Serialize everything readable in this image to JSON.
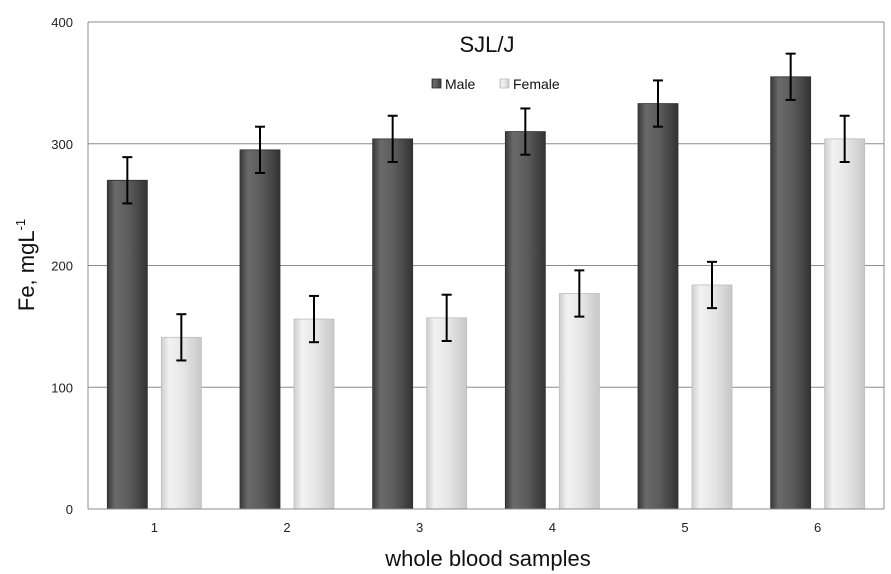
{
  "chart_data": {
    "type": "bar",
    "title": "SJL/J",
    "xlabel": "whole blood samples",
    "ylabel": "Fe, mgL",
    "ylabel_superscript": "-1",
    "categories": [
      "1",
      "2",
      "3",
      "4",
      "5",
      "6"
    ],
    "ylim": [
      0,
      400
    ],
    "yticks": [
      "0",
      "100",
      "200",
      "300",
      "400"
    ],
    "grid": true,
    "legend_position": "top-center",
    "series": [
      {
        "name": "Male",
        "color": "#5a5a5a",
        "values": [
          270,
          295,
          304,
          310,
          333,
          355
        ],
        "error": [
          19,
          19,
          19,
          19,
          19,
          19
        ]
      },
      {
        "name": "Female",
        "color": "#e6e6e6",
        "values": [
          141,
          156,
          157,
          177,
          184,
          304
        ],
        "error": [
          19,
          19,
          19,
          19,
          19,
          19
        ]
      }
    ]
  }
}
